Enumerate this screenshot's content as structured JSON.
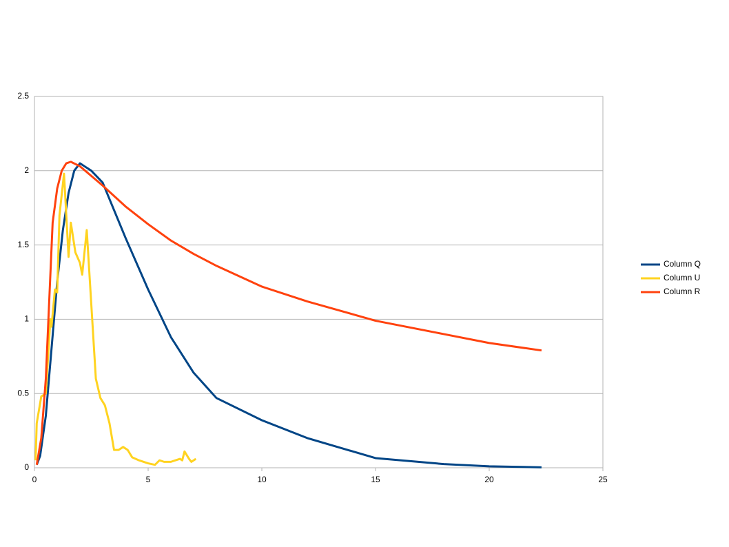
{
  "chart_data": {
    "type": "line",
    "xlim": [
      0,
      25
    ],
    "xticks": [
      0,
      5,
      10,
      15,
      20,
      25
    ],
    "ylim": [
      0,
      2.5
    ],
    "yticks": [
      0,
      0.5,
      1,
      1.5,
      2,
      2.5
    ],
    "grid": true,
    "legend": "right",
    "series": [
      {
        "name": "Column Q",
        "color": "#004586",
        "x": [
          0.1,
          0.25,
          0.5,
          0.75,
          1.0,
          1.25,
          1.5,
          1.75,
          2.0,
          2.5,
          3,
          4,
          5,
          6,
          7,
          8,
          10,
          12,
          15,
          18,
          20,
          22.3
        ],
        "values": [
          0.02,
          0.08,
          0.35,
          0.8,
          1.25,
          1.6,
          1.85,
          2.0,
          2.05,
          2.0,
          1.92,
          1.55,
          1.2,
          0.88,
          0.64,
          0.47,
          0.32,
          0.2,
          0.065,
          0.025,
          0.01,
          0.003
        ]
      },
      {
        "name": "Column U",
        "color": "#ffd320",
        "x": [
          0.05,
          0.1,
          0.3,
          0.5,
          0.7,
          0.75,
          0.9,
          1.0,
          1.1,
          1.3,
          1.4,
          1.5,
          1.6,
          1.8,
          2.0,
          2.1,
          2.3,
          2.5,
          2.7,
          2.9,
          3.1,
          3.3,
          3.5,
          3.7,
          3.9,
          4.1,
          4.3,
          4.6,
          5.0,
          5.3,
          5.5,
          5.7,
          6.0,
          6.2,
          6.4,
          6.5,
          6.6,
          6.8,
          6.9,
          7.1
        ],
        "values": [
          0.05,
          0.3,
          0.48,
          0.5,
          1.0,
          0.95,
          1.2,
          1.18,
          1.7,
          1.98,
          1.7,
          1.42,
          1.65,
          1.45,
          1.38,
          1.3,
          1.6,
          1.1,
          0.6,
          0.47,
          0.42,
          0.3,
          0.12,
          0.12,
          0.14,
          0.12,
          0.07,
          0.05,
          0.03,
          0.02,
          0.05,
          0.04,
          0.04,
          0.05,
          0.06,
          0.05,
          0.11,
          0.06,
          0.04,
          0.06
        ]
      },
      {
        "name": "Column R",
        "color": "#ff420e",
        "x": [
          0.1,
          0.3,
          0.5,
          0.7,
          0.8,
          1.0,
          1.2,
          1.4,
          1.6,
          2.0,
          3,
          4,
          5,
          6,
          7,
          8,
          10,
          12,
          15,
          18,
          20,
          22.3
        ],
        "values": [
          0.02,
          0.2,
          0.6,
          1.3,
          1.65,
          1.88,
          2.0,
          2.05,
          2.06,
          2.03,
          1.9,
          1.76,
          1.64,
          1.53,
          1.44,
          1.36,
          1.22,
          1.12,
          0.99,
          0.9,
          0.84,
          0.79
        ]
      }
    ]
  }
}
